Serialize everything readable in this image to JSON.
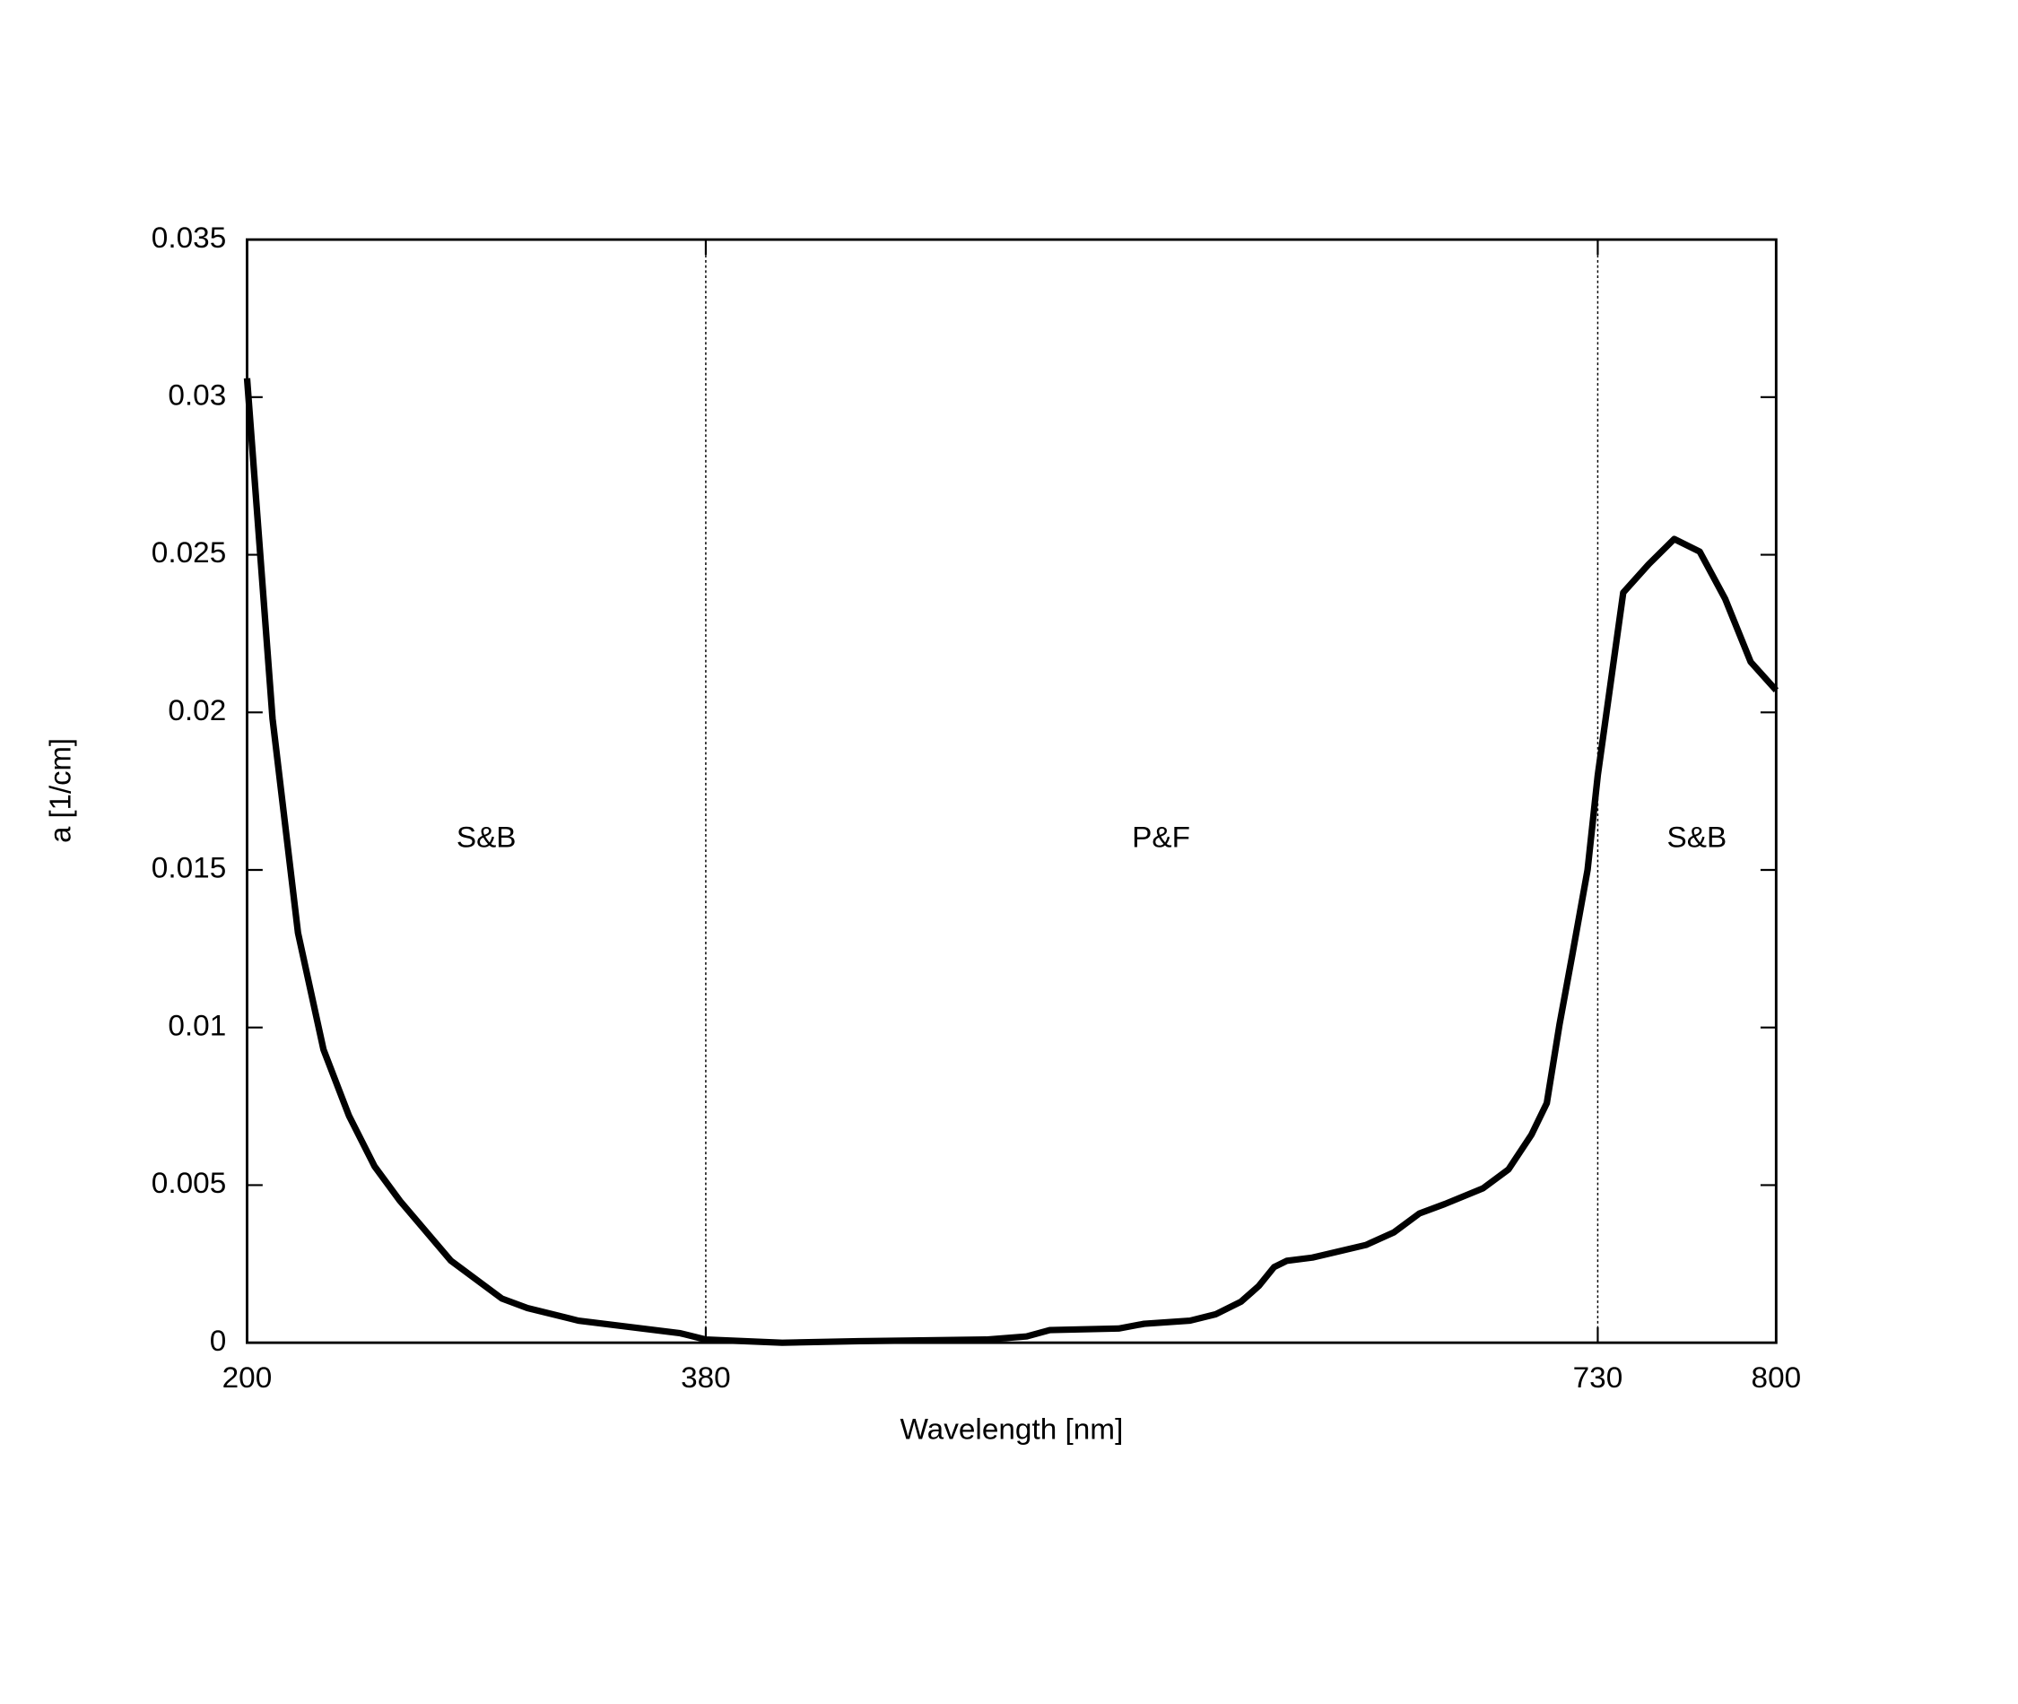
{
  "chart_data": {
    "type": "line",
    "xlabel": "Wavelength [nm]",
    "ylabel": "a [1/cm]",
    "x": [
      200,
      210,
      220,
      230,
      240,
      250,
      260,
      280,
      300,
      310,
      330,
      370,
      380,
      410,
      440,
      490,
      506,
      515,
      542,
      552,
      570,
      580,
      590,
      597,
      603,
      608,
      618,
      639,
      650,
      660,
      670,
      685,
      695,
      704,
      710,
      715,
      720,
      726,
      730,
      740,
      750,
      760,
      770,
      780,
      790,
      800
    ],
    "series": [
      {
        "color": "#000000",
        "values": [
          0.0306,
          0.0198,
          0.013,
          0.0093,
          0.0072,
          0.0056,
          0.0045,
          0.0026,
          0.0014,
          0.0011,
          0.0007,
          0.0003,
          0.0001,
          0.0,
          5e-05,
          0.0001,
          0.0002,
          0.0004,
          0.00045,
          0.0006,
          0.0007,
          0.0009,
          0.0013,
          0.0018,
          0.0024,
          0.0026,
          0.0027,
          0.0031,
          0.0035,
          0.0041,
          0.0044,
          0.0049,
          0.0055,
          0.0066,
          0.0076,
          0.0101,
          0.0123,
          0.015,
          0.018,
          0.0238,
          0.0247,
          0.0255,
          0.0251,
          0.0236,
          0.0216,
          0.0207
        ]
      }
    ],
    "xlim": [
      200,
      800
    ],
    "ylim": [
      0,
      0.035
    ],
    "xticks": [
      200,
      380,
      730,
      800
    ],
    "yticks": [
      0,
      0.005,
      0.01,
      0.015,
      0.02,
      0.025,
      0.03,
      0.035
    ],
    "vlines": [
      380,
      730
    ],
    "annotations": [
      "S&B",
      "P&F",
      "S&B"
    ]
  }
}
